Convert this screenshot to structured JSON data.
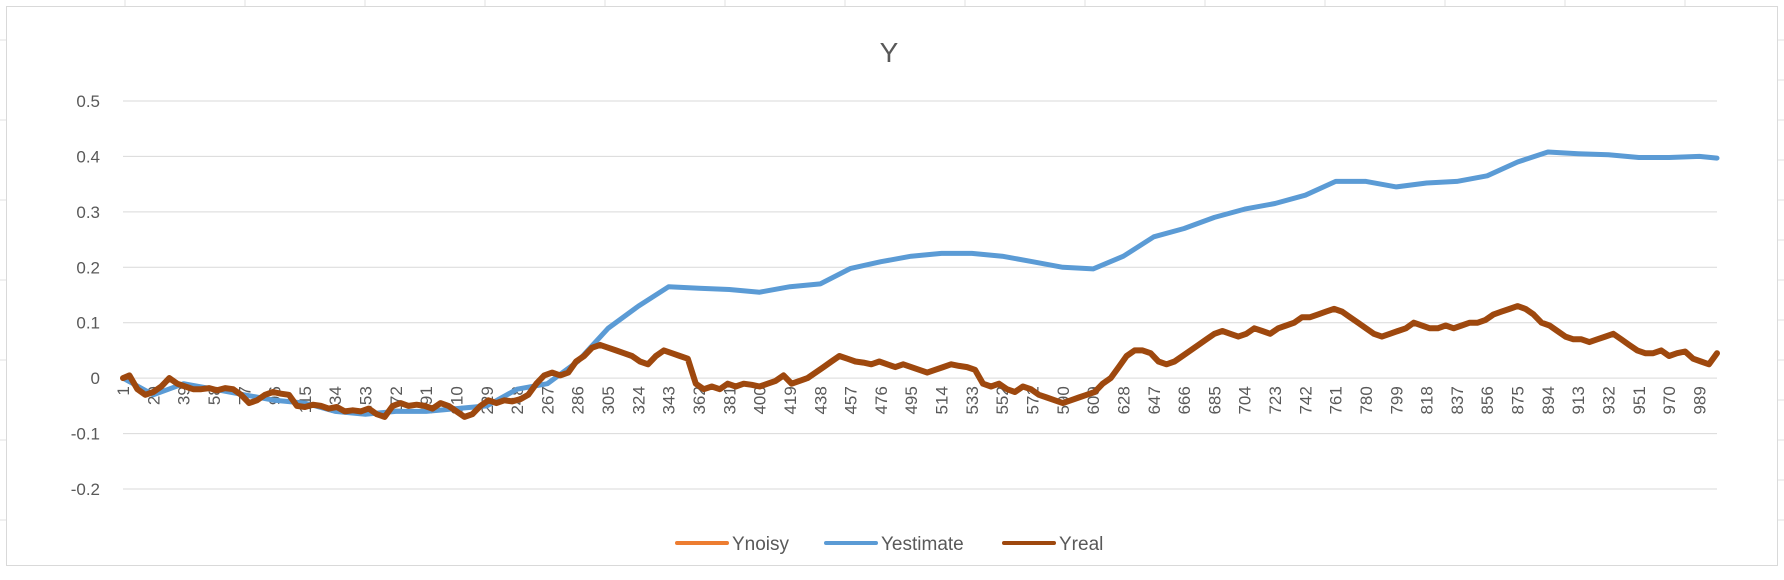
{
  "chart_data": {
    "type": "line",
    "title": "Y",
    "xlabel": "",
    "ylabel": "",
    "ylim": [
      -0.2,
      0.5
    ],
    "y_ticks": [
      "0.5",
      "0.4",
      "0.3",
      "0.2",
      "0.1",
      "0",
      "-0.1",
      "-0.2"
    ],
    "y_tick_values": [
      0.5,
      0.4,
      0.3,
      0.2,
      0.1,
      0,
      -0.1,
      -0.2
    ],
    "x_range": [
      1,
      1000
    ],
    "x_ticks": [
      "1",
      "20",
      "39",
      "58",
      "77",
      "96",
      "115",
      "134",
      "153",
      "172",
      "191",
      "210",
      "229",
      "248",
      "267",
      "286",
      "305",
      "324",
      "343",
      "362",
      "381",
      "400",
      "419",
      "438",
      "457",
      "476",
      "495",
      "514",
      "533",
      "552",
      "571",
      "590",
      "609",
      "628",
      "647",
      "666",
      "685",
      "704",
      "723",
      "742",
      "761",
      "780",
      "799",
      "818",
      "837",
      "856",
      "875",
      "894",
      "913",
      "932",
      "951",
      "970",
      "989"
    ],
    "grid": true,
    "legend_position": "bottom",
    "series": [
      {
        "name": "Ynoisy",
        "color": "#ED7D31",
        "x": [],
        "values": []
      },
      {
        "name": "Yestimate",
        "color": "#5B9BD5",
        "x": [
          1,
          20,
          39,
          58,
          77,
          96,
          115,
          134,
          153,
          172,
          191,
          210,
          229,
          248,
          267,
          286,
          305,
          324,
          343,
          362,
          381,
          400,
          419,
          438,
          457,
          476,
          495,
          514,
          533,
          552,
          571,
          590,
          609,
          628,
          647,
          666,
          685,
          704,
          723,
          742,
          761,
          780,
          799,
          818,
          837,
          856,
          875,
          894,
          913,
          932,
          951,
          970,
          989,
          1000
        ],
        "values": [
          0.0,
          -0.03,
          -0.01,
          -0.02,
          -0.03,
          -0.04,
          -0.045,
          -0.06,
          -0.065,
          -0.06,
          -0.06,
          -0.055,
          -0.05,
          -0.02,
          -0.01,
          0.03,
          0.09,
          0.13,
          0.165,
          0.162,
          0.16,
          0.155,
          0.165,
          0.17,
          0.198,
          0.21,
          0.22,
          0.225,
          0.225,
          0.22,
          0.21,
          0.2,
          0.197,
          0.22,
          0.255,
          0.27,
          0.29,
          0.305,
          0.315,
          0.33,
          0.355,
          0.355,
          0.345,
          0.352,
          0.355,
          0.365,
          0.39,
          0.408,
          0.405,
          0.403,
          0.398,
          0.398,
          0.4,
          0.397
        ]
      },
      {
        "name": "Yreal",
        "color": "#9E480E",
        "x": [
          1,
          5,
          10,
          15,
          20,
          25,
          30,
          35,
          40,
          45,
          50,
          55,
          60,
          65,
          70,
          75,
          80,
          85,
          90,
          95,
          100,
          105,
          110,
          115,
          120,
          125,
          130,
          135,
          140,
          145,
          150,
          155,
          160,
          165,
          170,
          175,
          180,
          185,
          190,
          195,
          200,
          205,
          210,
          215,
          220,
          225,
          230,
          235,
          240,
          245,
          250,
          255,
          260,
          265,
          270,
          275,
          280,
          285,
          290,
          295,
          300,
          305,
          310,
          315,
          320,
          325,
          330,
          335,
          340,
          345,
          350,
          355,
          360,
          365,
          370,
          375,
          380,
          385,
          390,
          395,
          400,
          405,
          410,
          415,
          420,
          425,
          430,
          435,
          440,
          445,
          450,
          455,
          460,
          465,
          470,
          475,
          480,
          485,
          490,
          495,
          500,
          505,
          510,
          515,
          520,
          525,
          530,
          535,
          540,
          545,
          550,
          555,
          560,
          565,
          570,
          575,
          580,
          585,
          590,
          595,
          600,
          605,
          610,
          615,
          620,
          625,
          630,
          635,
          640,
          645,
          650,
          655,
          660,
          665,
          670,
          675,
          680,
          685,
          690,
          695,
          700,
          705,
          710,
          715,
          720,
          725,
          730,
          735,
          740,
          745,
          750,
          755,
          760,
          765,
          770,
          775,
          780,
          785,
          790,
          795,
          800,
          805,
          810,
          815,
          820,
          825,
          830,
          835,
          840,
          845,
          850,
          855,
          860,
          865,
          870,
          875,
          880,
          885,
          890,
          895,
          900,
          905,
          910,
          915,
          920,
          925,
          930,
          935,
          940,
          945,
          950,
          955,
          960,
          965,
          970,
          975,
          980,
          985,
          990,
          995,
          1000
        ],
        "values": [
          0.0,
          0.005,
          -0.02,
          -0.03,
          -0.025,
          -0.015,
          0.0,
          -0.01,
          -0.015,
          -0.02,
          -0.02,
          -0.018,
          -0.022,
          -0.018,
          -0.02,
          -0.03,
          -0.045,
          -0.04,
          -0.03,
          -0.025,
          -0.028,
          -0.03,
          -0.05,
          -0.052,
          -0.048,
          -0.05,
          -0.055,
          -0.052,
          -0.06,
          -0.058,
          -0.06,
          -0.055,
          -0.065,
          -0.07,
          -0.05,
          -0.045,
          -0.05,
          -0.048,
          -0.05,
          -0.055,
          -0.045,
          -0.05,
          -0.06,
          -0.07,
          -0.065,
          -0.05,
          -0.04,
          -0.045,
          -0.04,
          -0.042,
          -0.038,
          -0.03,
          -0.01,
          0.005,
          0.01,
          0.005,
          0.01,
          0.03,
          0.04,
          0.055,
          0.06,
          0.055,
          0.05,
          0.045,
          0.04,
          0.03,
          0.025,
          0.04,
          0.05,
          0.045,
          0.04,
          0.035,
          -0.01,
          -0.02,
          -0.015,
          -0.02,
          -0.01,
          -0.015,
          -0.01,
          -0.012,
          -0.015,
          -0.01,
          -0.005,
          0.005,
          -0.01,
          -0.005,
          0.0,
          0.01,
          0.02,
          0.03,
          0.04,
          0.035,
          0.03,
          0.028,
          0.025,
          0.03,
          0.025,
          0.02,
          0.025,
          0.02,
          0.015,
          0.01,
          0.015,
          0.02,
          0.025,
          0.022,
          0.02,
          0.015,
          -0.01,
          -0.015,
          -0.01,
          -0.02,
          -0.025,
          -0.015,
          -0.02,
          -0.03,
          -0.035,
          -0.04,
          -0.045,
          -0.04,
          -0.035,
          -0.03,
          -0.025,
          -0.01,
          0.0,
          0.02,
          0.04,
          0.05,
          0.05,
          0.045,
          0.03,
          0.025,
          0.03,
          0.04,
          0.05,
          0.06,
          0.07,
          0.08,
          0.085,
          0.08,
          0.075,
          0.08,
          0.09,
          0.085,
          0.08,
          0.09,
          0.095,
          0.1,
          0.11,
          0.11,
          0.115,
          0.12,
          0.125,
          0.12,
          0.11,
          0.1,
          0.09,
          0.08,
          0.075,
          0.08,
          0.085,
          0.09,
          0.1,
          0.095,
          0.09,
          0.09,
          0.095,
          0.09,
          0.095,
          0.1,
          0.1,
          0.105,
          0.115,
          0.12,
          0.125,
          0.13,
          0.125,
          0.115,
          0.1,
          0.095,
          0.085,
          0.075,
          0.07,
          0.07,
          0.065,
          0.07,
          0.075,
          0.08,
          0.07,
          0.06,
          0.05,
          0.045,
          0.045,
          0.05,
          0.04,
          0.045,
          0.048,
          0.035,
          0.03,
          0.025,
          0.045
        ]
      }
    ]
  }
}
